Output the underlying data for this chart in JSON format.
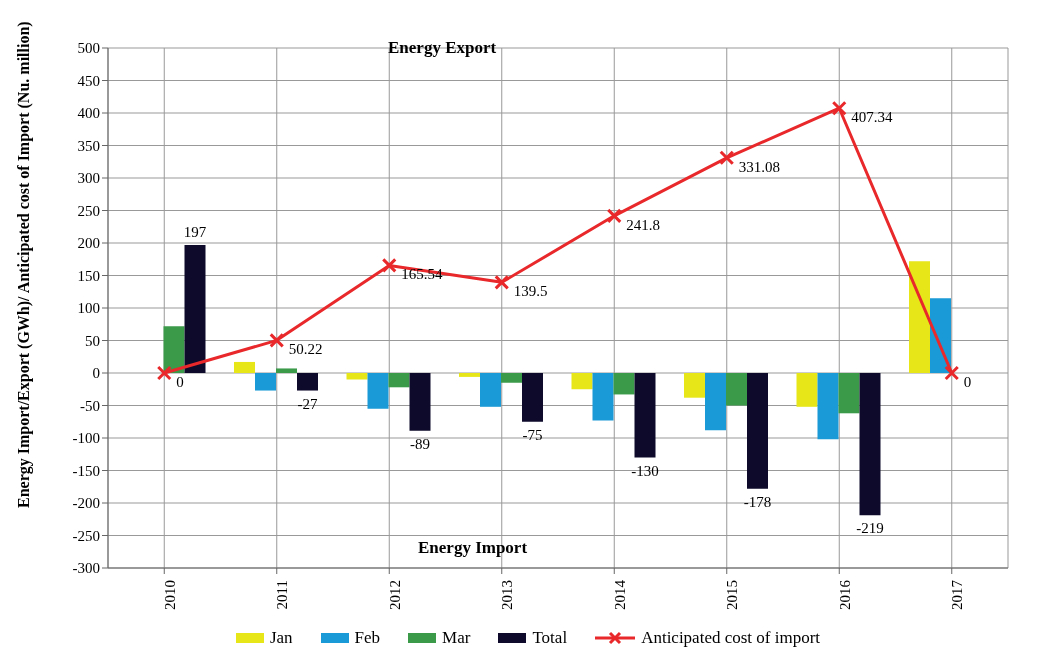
{
  "chart_data": {
    "type": "bar",
    "ylabel": "Energy Import/Export (GWh)/ Anticipated cost of Import (Nu. million)",
    "annotations": [
      "Energy  Export",
      "Energy Import"
    ],
    "categories": [
      "2010",
      "2011",
      "2012",
      "2013",
      "2014",
      "2015",
      "2016",
      "2017"
    ],
    "series": [
      {
        "name": "Jan",
        "color": "#e6e619",
        "values": [
          null,
          17,
          -10,
          -6,
          -25,
          -38,
          -52,
          172
        ]
      },
      {
        "name": "Feb",
        "color": "#1a9ad6",
        "values": [
          null,
          -27,
          -55,
          -52,
          -73,
          -88,
          -102,
          115
        ]
      },
      {
        "name": "Mar",
        "color": "#3a9a4a",
        "values": [
          72,
          7,
          -22,
          -15,
          -33,
          -50,
          -62,
          null
        ]
      },
      {
        "name": "Total",
        "color": "#0d0a2b",
        "values": [
          197,
          -27,
          -89,
          -75,
          -130,
          -178,
          -219,
          null
        ],
        "value_labels": [
          "197",
          "-27",
          "-89",
          "-75",
          "-130",
          "-178",
          "-219",
          null
        ]
      },
      {
        "name": "Anticipated cost of import",
        "type": "line",
        "color": "#e8282a",
        "marker": "cross",
        "values": [
          0,
          50.22,
          165.54,
          139.5,
          241.8,
          331.08,
          407.34,
          0
        ],
        "value_labels": [
          "0",
          "50.22",
          "165.54",
          "139.5",
          "241.8",
          "331.08",
          "407.34",
          "0"
        ]
      }
    ],
    "ylim": [
      -300,
      500
    ],
    "yticks": [
      -300,
      -250,
      -200,
      -150,
      -100,
      -50,
      0,
      50,
      100,
      150,
      200,
      250,
      300,
      350,
      400,
      450,
      500
    ],
    "grid": true,
    "legend": "bottom"
  }
}
